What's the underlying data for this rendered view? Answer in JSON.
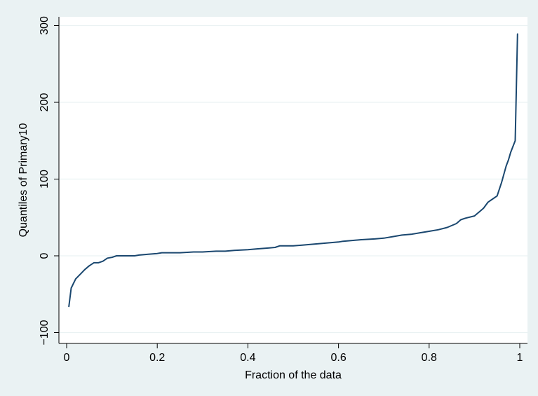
{
  "chart_data": {
    "type": "line",
    "title": "",
    "xlabel": "Fraction of the data",
    "ylabel": "Quantiles of Primary10",
    "xlim": [
      0,
      1
    ],
    "ylim": [
      -100,
      300
    ],
    "xticks": [
      0,
      0.2,
      0.4,
      0.6,
      0.8,
      1
    ],
    "xtick_labels": [
      "0",
      "0.2",
      "0.4",
      "0.6",
      "0.8",
      "1"
    ],
    "yticks": [
      -100,
      0,
      100,
      200,
      300
    ],
    "ytick_labels": [
      "−100",
      "0",
      "100",
      "200",
      "300"
    ],
    "grid": true,
    "legend": "none",
    "colors": {
      "background": "#eaf2f3",
      "plot_area": "#ffffff",
      "gridline": "#eaf2f3",
      "line": "#1a476f"
    },
    "series": [
      {
        "x": [
          0.005,
          0.01,
          0.02,
          0.03,
          0.04,
          0.05,
          0.06,
          0.07,
          0.08,
          0.09,
          0.1,
          0.11,
          0.12,
          0.13,
          0.14,
          0.15,
          0.16,
          0.18,
          0.2,
          0.21,
          0.23,
          0.25,
          0.28,
          0.3,
          0.33,
          0.35,
          0.37,
          0.4,
          0.42,
          0.44,
          0.46,
          0.47,
          0.5,
          0.52,
          0.54,
          0.56,
          0.58,
          0.6,
          0.61,
          0.63,
          0.65,
          0.68,
          0.7,
          0.72,
          0.74,
          0.76,
          0.78,
          0.8,
          0.82,
          0.84,
          0.86,
          0.87,
          0.88,
          0.9,
          0.91,
          0.92,
          0.93,
          0.94,
          0.95,
          0.96,
          0.97,
          0.975,
          0.98,
          0.99,
          0.995
        ],
        "y": [
          -66,
          -42,
          -30,
          -24,
          -18,
          -13,
          -9,
          -9,
          -7,
          -3,
          -2,
          0,
          0,
          0,
          0,
          0,
          1,
          2,
          3,
          4,
          4,
          4,
          5,
          5,
          6,
          6,
          7,
          8,
          9,
          10,
          11,
          13,
          13,
          14,
          15,
          16,
          17,
          18,
          19,
          20,
          21,
          22,
          23,
          25,
          27,
          28,
          30,
          32,
          34,
          37,
          42,
          47,
          49,
          52,
          57,
          62,
          70,
          74,
          78,
          96,
          117,
          125,
          135,
          150,
          289
        ]
      }
    ]
  }
}
